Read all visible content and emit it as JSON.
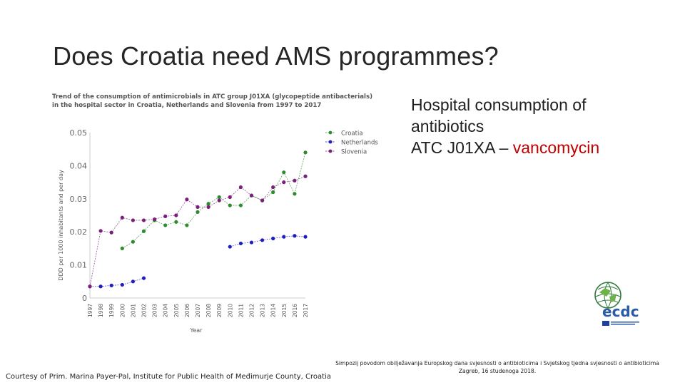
{
  "slide": {
    "title": "Does Croatia need AMS programmes?",
    "side_line1": "Hospital consumption of",
    "side_line2": "antibiotics",
    "side_line3_prefix": "ATC J01XA – ",
    "side_line3_accent": "vancomycin",
    "footer_line1": "Simpozij povodom obilježavanja Europskog dana svjesnosti o antibioticima i Svjetskog tjedna svjesnosti o antibioticima",
    "footer_line2": "Zagreb, 16 studenoga 2018.",
    "courtesy": "Courtesy of Prim. Marina Payer-Pal, Institute for Public Health of Međimurje County, Croatia",
    "logo_text": "ecdc",
    "colors": {
      "croatia": "#2e8b2e",
      "netherlands": "#1f1fbf",
      "slovenia": "#7a1f7a",
      "accent": "#c00000"
    }
  },
  "chart_data": {
    "type": "line",
    "title": "Trend of the consumption of antimicrobials in ATC group J01XA (glycopeptide antibacterials) in the hospital sector in Croatia, Netherlands and Slovenia from 1997 to 2017",
    "xlabel": "Year",
    "ylabel": "DDD per 1000 inhabitants and per day",
    "ylim": [
      0,
      0.05
    ],
    "yticks": [
      "0",
      "0.01",
      "0.02",
      "0.03",
      "0.04",
      "0.05"
    ],
    "x": [
      "1997",
      "1998",
      "1999",
      "2000",
      "2001",
      "2002",
      "2003",
      "2004",
      "2005",
      "2006",
      "2007",
      "2008",
      "2009",
      "2010",
      "2011",
      "2012",
      "2013",
      "2014",
      "2015",
      "2016",
      "2017"
    ],
    "legend_position": "top-right",
    "series": [
      {
        "name": "Croatia",
        "color": "#2e8b2e",
        "values": [
          null,
          null,
          null,
          0.015,
          0.017,
          0.0202,
          0.0235,
          0.022,
          0.023,
          0.022,
          0.026,
          0.0285,
          0.0305,
          0.028,
          0.028,
          0.031,
          0.0295,
          0.032,
          0.038,
          0.0315,
          0.044
        ]
      },
      {
        "name": "Netherlands",
        "color": "#1f1fbf",
        "values": [
          0.0035,
          0.0035,
          0.0038,
          0.004,
          0.005,
          0.006,
          null,
          null,
          null,
          null,
          null,
          null,
          null,
          0.0155,
          0.0165,
          0.0168,
          0.0175,
          0.018,
          0.0185,
          0.0188,
          0.0185
        ]
      },
      {
        "name": "Slovenia",
        "color": "#7a1f7a",
        "values": [
          0.0035,
          0.0203,
          0.0198,
          0.0243,
          0.0235,
          0.0235,
          0.0238,
          0.0247,
          0.025,
          0.0298,
          0.0275,
          0.0275,
          0.0295,
          0.0305,
          0.0335,
          0.031,
          0.0295,
          0.0335,
          0.035,
          0.0355,
          0.0368
        ]
      }
    ]
  }
}
